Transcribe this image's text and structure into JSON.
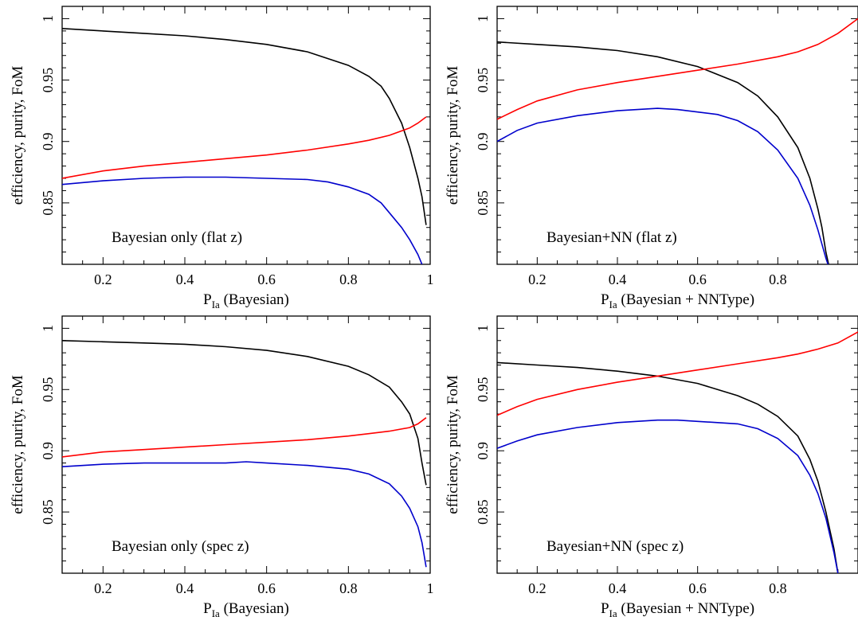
{
  "chart_data": [
    {
      "type": "line",
      "annotation": "Bayesian only (flat z)",
      "xlabel": "P_Ia (Bayesian)",
      "xlabel_main": "P",
      "xlabel_sub": "Ia",
      "xlabel_rest": " (Bayesian)",
      "ylabel": "efficiency, purity, FoM",
      "xlim": [
        0.1,
        1.0
      ],
      "ylim": [
        0.8,
        1.01
      ],
      "xticks": [
        0.2,
        0.4,
        0.6,
        0.8,
        1
      ],
      "xtick_labels": [
        "0.2",
        "0.4",
        "0.6",
        "0.8",
        "1"
      ],
      "yticks": [
        0.85,
        0.9,
        0.95,
        1
      ],
      "ytick_labels": [
        "0.85",
        "0.9",
        "0.95",
        "1"
      ],
      "series": [
        {
          "color": "#000000",
          "x": [
            0.1,
            0.2,
            0.3,
            0.4,
            0.5,
            0.6,
            0.7,
            0.8,
            0.85,
            0.88,
            0.9,
            0.93,
            0.95,
            0.97,
            0.98,
            0.99
          ],
          "y": [
            0.992,
            0.99,
            0.988,
            0.986,
            0.983,
            0.979,
            0.973,
            0.962,
            0.953,
            0.945,
            0.935,
            0.915,
            0.895,
            0.87,
            0.855,
            0.832
          ]
        },
        {
          "color": "#ff0000",
          "x": [
            0.1,
            0.2,
            0.3,
            0.4,
            0.5,
            0.6,
            0.7,
            0.8,
            0.85,
            0.9,
            0.95,
            0.97,
            0.99
          ],
          "y": [
            0.87,
            0.876,
            0.88,
            0.883,
            0.886,
            0.889,
            0.893,
            0.898,
            0.901,
            0.905,
            0.911,
            0.915,
            0.92
          ]
        },
        {
          "color": "#0000cc",
          "x": [
            0.1,
            0.2,
            0.3,
            0.4,
            0.5,
            0.6,
            0.7,
            0.75,
            0.8,
            0.85,
            0.88,
            0.9,
            0.93,
            0.95,
            0.97,
            0.98
          ],
          "y": [
            0.865,
            0.868,
            0.87,
            0.871,
            0.871,
            0.87,
            0.869,
            0.867,
            0.863,
            0.857,
            0.85,
            0.842,
            0.83,
            0.82,
            0.808,
            0.8
          ]
        }
      ]
    },
    {
      "type": "line",
      "annotation": "Bayesian+NN (flat z)",
      "xlabel": "P_Ia (Bayesian + NNType)",
      "xlabel_main": "P",
      "xlabel_sub": "Ia",
      "xlabel_rest": " (Bayesian + NNType)",
      "ylabel": "efficiency, purity, FoM",
      "xlim": [
        0.1,
        1.0
      ],
      "ylim": [
        0.8,
        1.01
      ],
      "xticks": [
        0.2,
        0.4,
        0.6,
        0.8
      ],
      "xtick_labels": [
        "0.2",
        "0.4",
        "0.6",
        "0.8"
      ],
      "yticks": [
        0.85,
        0.9,
        0.95,
        1
      ],
      "ytick_labels": [
        "0.85",
        "0.9",
        "0.95",
        "1"
      ],
      "series": [
        {
          "color": "#000000",
          "x": [
            0.1,
            0.2,
            0.3,
            0.4,
            0.5,
            0.6,
            0.7,
            0.75,
            0.8,
            0.85,
            0.88,
            0.9,
            0.91,
            0.92,
            0.93
          ],
          "y": [
            0.981,
            0.979,
            0.977,
            0.974,
            0.969,
            0.961,
            0.948,
            0.937,
            0.92,
            0.895,
            0.87,
            0.845,
            0.83,
            0.81,
            0.795
          ]
        },
        {
          "color": "#ff0000",
          "x": [
            0.1,
            0.15,
            0.2,
            0.3,
            0.4,
            0.5,
            0.6,
            0.7,
            0.8,
            0.85,
            0.9,
            0.95,
            1.0
          ],
          "y": [
            0.918,
            0.926,
            0.933,
            0.942,
            0.948,
            0.953,
            0.958,
            0.963,
            0.969,
            0.973,
            0.979,
            0.988,
            1.0
          ]
        },
        {
          "color": "#0000cc",
          "x": [
            0.1,
            0.15,
            0.2,
            0.3,
            0.4,
            0.5,
            0.55,
            0.6,
            0.65,
            0.7,
            0.75,
            0.8,
            0.85,
            0.88,
            0.9,
            0.92,
            0.93
          ],
          "y": [
            0.9,
            0.909,
            0.915,
            0.921,
            0.925,
            0.927,
            0.926,
            0.924,
            0.922,
            0.917,
            0.908,
            0.893,
            0.87,
            0.848,
            0.828,
            0.805,
            0.795
          ]
        }
      ]
    },
    {
      "type": "line",
      "annotation": "Bayesian only (spec z)",
      "xlabel": "P_Ia (Bayesian)",
      "xlabel_main": "P",
      "xlabel_sub": "Ia",
      "xlabel_rest": " (Bayesian)",
      "ylabel": "efficiency, purity, FoM",
      "xlim": [
        0.1,
        1.0
      ],
      "ylim": [
        0.8,
        1.01
      ],
      "xticks": [
        0.2,
        0.4,
        0.6,
        0.8,
        1
      ],
      "xtick_labels": [
        "0.2",
        "0.4",
        "0.6",
        "0.8",
        "1"
      ],
      "yticks": [
        0.85,
        0.9,
        0.95,
        1
      ],
      "ytick_labels": [
        "0.85",
        "0.9",
        "0.95",
        "1"
      ],
      "series": [
        {
          "color": "#000000",
          "x": [
            0.1,
            0.2,
            0.3,
            0.4,
            0.5,
            0.6,
            0.7,
            0.8,
            0.85,
            0.9,
            0.93,
            0.95,
            0.97,
            0.98,
            0.99
          ],
          "y": [
            0.99,
            0.989,
            0.988,
            0.987,
            0.985,
            0.982,
            0.977,
            0.969,
            0.962,
            0.952,
            0.94,
            0.93,
            0.91,
            0.89,
            0.872
          ]
        },
        {
          "color": "#ff0000",
          "x": [
            0.1,
            0.2,
            0.3,
            0.4,
            0.5,
            0.6,
            0.7,
            0.8,
            0.85,
            0.9,
            0.95,
            0.97,
            0.99
          ],
          "y": [
            0.895,
            0.899,
            0.901,
            0.903,
            0.905,
            0.907,
            0.909,
            0.912,
            0.914,
            0.916,
            0.919,
            0.922,
            0.927
          ]
        },
        {
          "color": "#0000cc",
          "x": [
            0.1,
            0.2,
            0.3,
            0.4,
            0.5,
            0.55,
            0.6,
            0.7,
            0.8,
            0.85,
            0.9,
            0.93,
            0.95,
            0.97,
            0.98,
            0.99
          ],
          "y": [
            0.887,
            0.889,
            0.89,
            0.89,
            0.89,
            0.891,
            0.89,
            0.888,
            0.885,
            0.881,
            0.873,
            0.863,
            0.853,
            0.838,
            0.825,
            0.805
          ]
        }
      ]
    },
    {
      "type": "line",
      "annotation": "Bayesian+NN (spec z)",
      "xlabel": "P_Ia (Bayesian + NNType)",
      "xlabel_main": "P",
      "xlabel_sub": "Ia",
      "xlabel_rest": " (Bayesian + NNType)",
      "ylabel": "efficiency, purity, FoM",
      "xlim": [
        0.1,
        1.0
      ],
      "ylim": [
        0.8,
        1.01
      ],
      "xticks": [
        0.2,
        0.4,
        0.6,
        0.8
      ],
      "xtick_labels": [
        "0.2",
        "0.4",
        "0.6",
        "0.8"
      ],
      "yticks": [
        0.85,
        0.9,
        0.95,
        1
      ],
      "ytick_labels": [
        "0.85",
        "0.9",
        "0.95",
        "1"
      ],
      "series": [
        {
          "color": "#000000",
          "x": [
            0.1,
            0.2,
            0.3,
            0.4,
            0.5,
            0.6,
            0.7,
            0.75,
            0.8,
            0.85,
            0.88,
            0.9,
            0.92,
            0.94,
            0.95
          ],
          "y": [
            0.972,
            0.97,
            0.968,
            0.965,
            0.961,
            0.955,
            0.945,
            0.938,
            0.928,
            0.912,
            0.893,
            0.875,
            0.85,
            0.82,
            0.8
          ]
        },
        {
          "color": "#ff0000",
          "x": [
            0.1,
            0.15,
            0.2,
            0.3,
            0.4,
            0.5,
            0.6,
            0.7,
            0.8,
            0.85,
            0.9,
            0.95,
            1.0
          ],
          "y": [
            0.929,
            0.936,
            0.942,
            0.95,
            0.956,
            0.961,
            0.966,
            0.971,
            0.976,
            0.979,
            0.983,
            0.988,
            0.997
          ]
        },
        {
          "color": "#0000cc",
          "x": [
            0.1,
            0.15,
            0.2,
            0.3,
            0.4,
            0.5,
            0.55,
            0.6,
            0.65,
            0.7,
            0.75,
            0.8,
            0.85,
            0.88,
            0.9,
            0.92,
            0.94,
            0.95
          ],
          "y": [
            0.902,
            0.908,
            0.913,
            0.919,
            0.923,
            0.925,
            0.925,
            0.924,
            0.923,
            0.922,
            0.918,
            0.91,
            0.896,
            0.88,
            0.865,
            0.845,
            0.817,
            0.8
          ]
        }
      ]
    }
  ]
}
